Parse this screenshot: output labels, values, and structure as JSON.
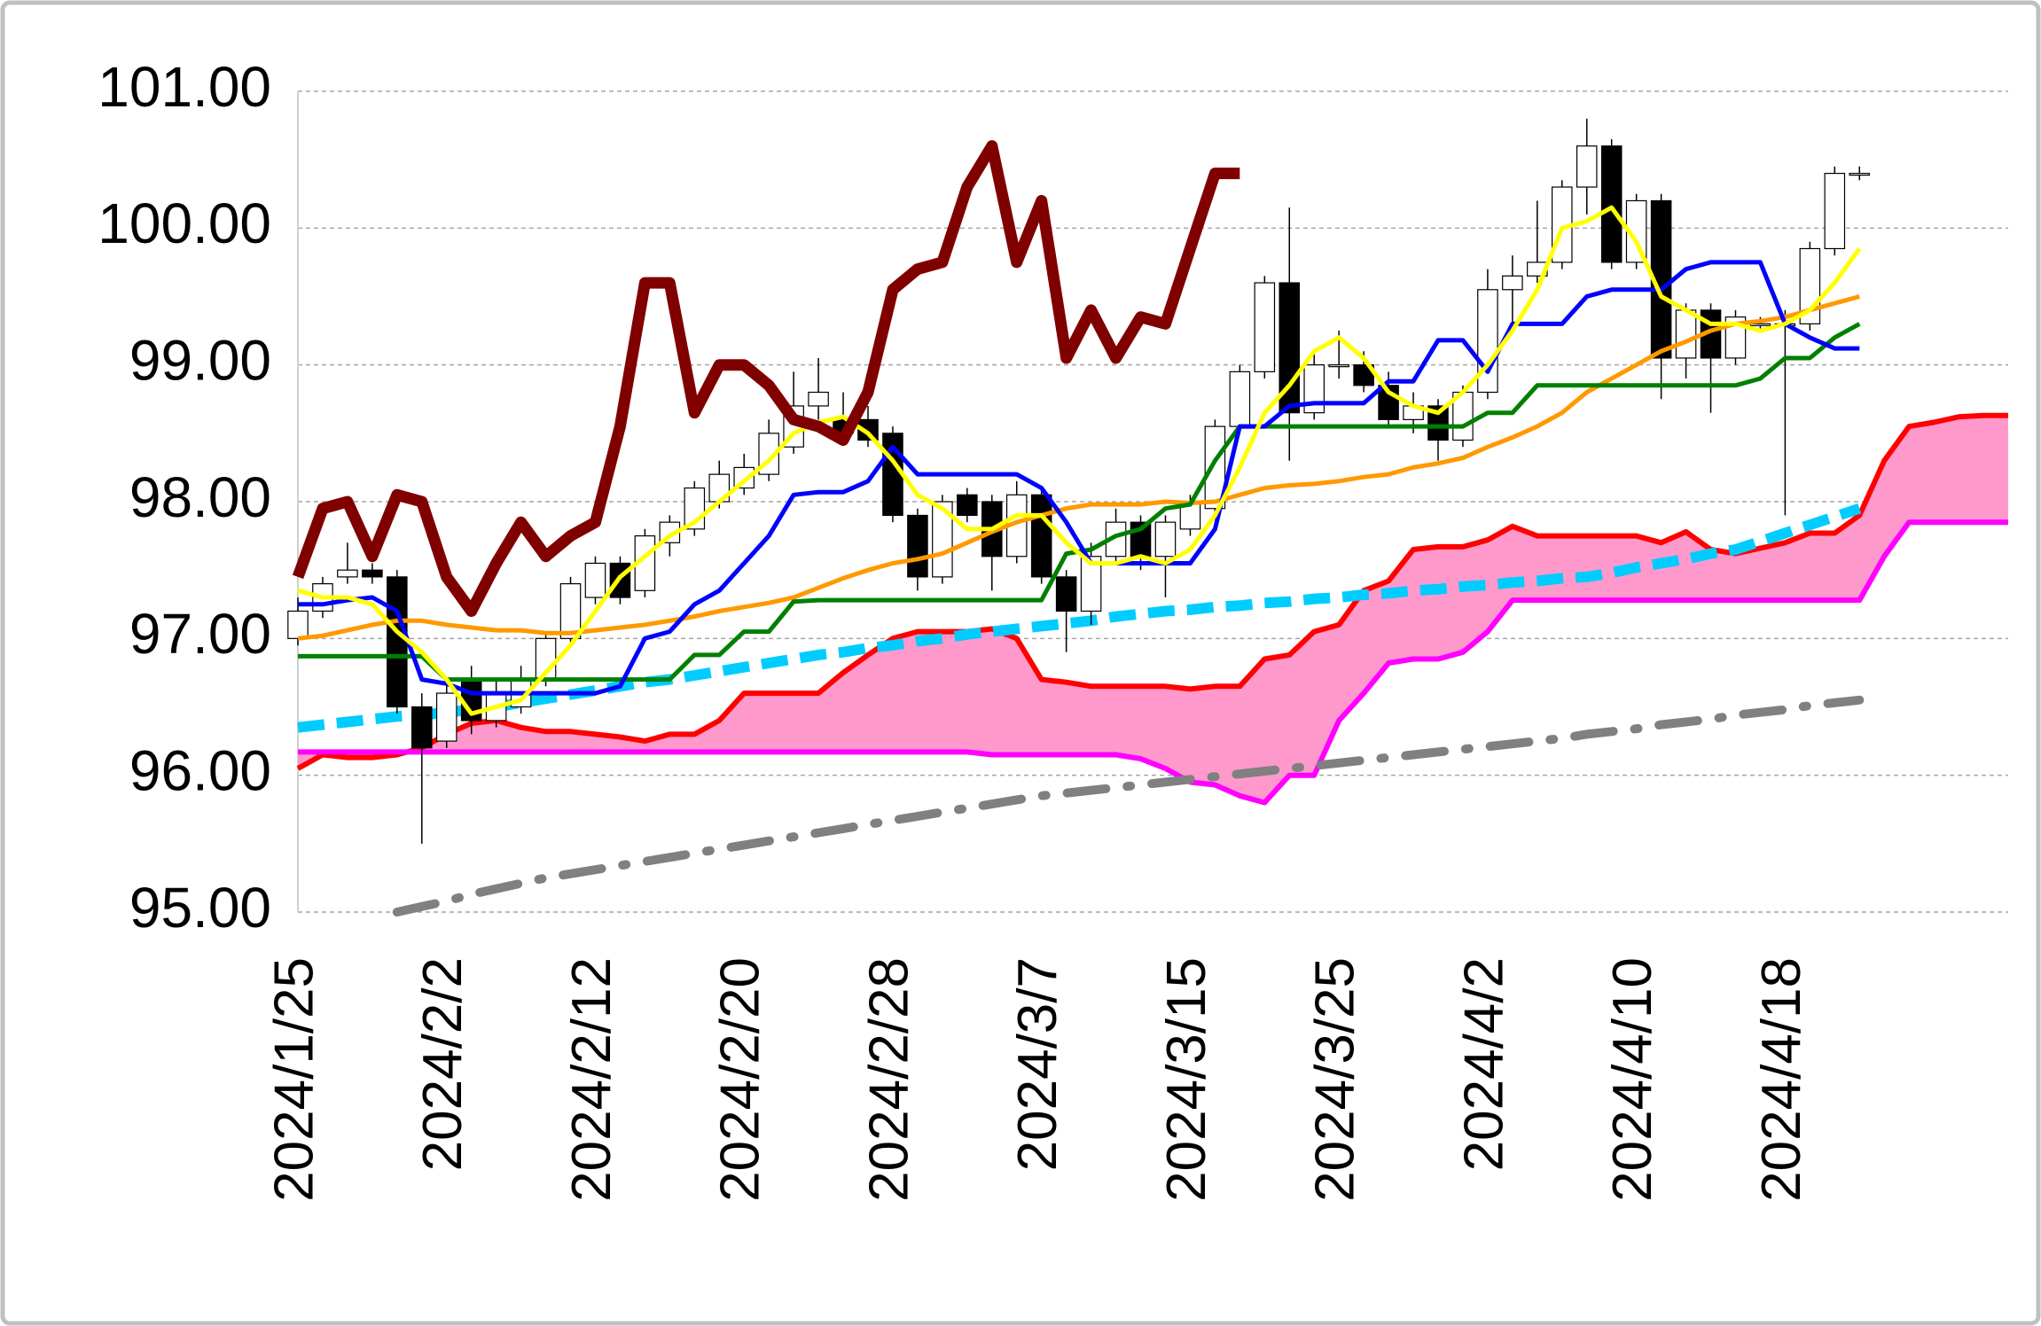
{
  "chart_data": {
    "type": "candlestick",
    "categories": [
      "2024/1/25",
      null,
      null,
      null,
      null,
      null,
      "2024/2/2",
      null,
      null,
      null,
      null,
      null,
      "2024/2/12",
      null,
      null,
      null,
      null,
      null,
      "2024/2/20",
      null,
      null,
      null,
      null,
      null,
      "2024/2/28",
      null,
      null,
      null,
      null,
      null,
      "2024/3/7",
      null,
      null,
      null,
      null,
      null,
      "2024/3/15",
      null,
      null,
      null,
      null,
      null,
      "2024/3/25",
      null,
      null,
      null,
      null,
      null,
      "2024/4/2",
      null,
      null,
      null,
      null,
      null,
      "2024/4/10",
      null,
      null,
      null,
      null,
      null,
      "2024/4/18",
      null,
      null,
      null,
      null,
      null,
      null,
      null,
      null,
      null
    ],
    "ohlc": {
      "up_color": "#ffffff",
      "down_color": "#000000",
      "edge_color": "#000000",
      "open": [
        97.0,
        97.2,
        97.45,
        97.5,
        97.45,
        96.5,
        96.25,
        96.7,
        96.4,
        96.5,
        96.7,
        97.0,
        97.3,
        97.55,
        97.35,
        97.7,
        97.8,
        98.0,
        98.1,
        98.2,
        98.4,
        98.7,
        98.6,
        98.6,
        98.5,
        97.9,
        97.45,
        98.05,
        98.0,
        97.6,
        98.05,
        97.45,
        97.2,
        97.6,
        97.85,
        97.6,
        97.8,
        97.95,
        98.55,
        98.95,
        99.6,
        98.65,
        99.0,
        99.0,
        98.85,
        98.6,
        98.7,
        98.45,
        98.8,
        99.55,
        99.65,
        99.75,
        100.3,
        100.6,
        99.75,
        100.2,
        99.05,
        99.4,
        99.05,
        99.3,
        99.3,
        99.3,
        99.85,
        100.4,
        null,
        null,
        null,
        null,
        null,
        null
      ],
      "high": [
        97.3,
        97.45,
        97.7,
        97.55,
        97.5,
        96.6,
        96.7,
        96.8,
        96.7,
        96.8,
        97.05,
        97.45,
        97.6,
        97.6,
        97.8,
        97.9,
        98.15,
        98.3,
        98.35,
        98.6,
        98.95,
        99.05,
        98.8,
        98.7,
        98.55,
        97.95,
        98.05,
        98.1,
        98.05,
        98.15,
        98.1,
        97.5,
        97.7,
        97.95,
        97.9,
        97.9,
        98.05,
        98.6,
        99.0,
        99.65,
        100.15,
        99.1,
        99.25,
        99.1,
        98.95,
        98.8,
        98.75,
        98.85,
        99.7,
        99.8,
        100.2,
        100.35,
        100.8,
        100.65,
        100.25,
        100.25,
        99.45,
        99.45,
        99.4,
        99.35,
        99.4,
        99.9,
        100.45,
        100.45,
        null,
        null,
        null,
        null,
        null,
        null
      ],
      "low": [
        96.95,
        97.15,
        97.4,
        97.4,
        96.45,
        95.5,
        96.2,
        96.3,
        96.35,
        96.45,
        96.65,
        96.95,
        97.25,
        97.25,
        97.3,
        97.6,
        97.75,
        97.95,
        98.05,
        98.15,
        98.35,
        98.6,
        98.5,
        98.4,
        97.85,
        97.35,
        97.4,
        97.85,
        97.35,
        97.55,
        97.4,
        96.9,
        97.1,
        97.55,
        97.5,
        97.3,
        97.75,
        97.9,
        98.5,
        98.9,
        98.3,
        98.6,
        98.9,
        98.8,
        98.55,
        98.5,
        98.3,
        98.4,
        98.75,
        99.3,
        99.6,
        99.7,
        100.1,
        99.7,
        99.7,
        98.75,
        98.9,
        98.65,
        99.0,
        99.25,
        97.9,
        99.25,
        99.8,
        100.35,
        null,
        null,
        null,
        null,
        null,
        null
      ],
      "close": [
        97.2,
        97.4,
        97.5,
        97.45,
        96.5,
        96.2,
        96.6,
        96.4,
        96.6,
        96.7,
        97.0,
        97.4,
        97.55,
        97.3,
        97.75,
        97.85,
        98.1,
        98.2,
        98.25,
        98.5,
        98.7,
        98.8,
        98.5,
        98.45,
        97.9,
        97.45,
        98.0,
        97.9,
        97.6,
        98.05,
        97.45,
        97.2,
        97.6,
        97.85,
        97.6,
        97.85,
        98.0,
        98.55,
        98.95,
        99.6,
        98.65,
        99.0,
        99.0,
        98.85,
        98.6,
        98.7,
        98.45,
        98.8,
        99.55,
        99.65,
        99.75,
        100.3,
        100.6,
        99.75,
        100.2,
        99.05,
        99.4,
        99.05,
        99.35,
        99.3,
        99.3,
        99.85,
        100.4,
        100.4,
        null,
        null,
        null,
        null,
        null,
        null
      ]
    },
    "cloud": {
      "between": [
        0,
        1
      ],
      "color": "#ff99cc"
    },
    "series": [
      {
        "color": "#ff0000",
        "width": 6,
        "style": "solid",
        "values": [
          96.05,
          96.15,
          96.13,
          96.13,
          96.15,
          96.2,
          96.3,
          96.38,
          96.4,
          96.35,
          96.32,
          96.32,
          96.3,
          96.28,
          96.25,
          96.3,
          96.3,
          96.4,
          96.6,
          96.6,
          96.6,
          96.6,
          96.75,
          96.88,
          97.0,
          97.05,
          97.05,
          97.05,
          97.07,
          97.0,
          96.7,
          96.68,
          96.65,
          96.65,
          96.65,
          96.65,
          96.63,
          96.65,
          96.65,
          96.85,
          96.88,
          97.05,
          97.1,
          97.35,
          97.42,
          97.65,
          97.67,
          97.67,
          97.72,
          97.82,
          97.75,
          97.75,
          97.75,
          97.75,
          97.75,
          97.7,
          97.78,
          97.65,
          97.62,
          97.66,
          97.7,
          97.77,
          97.77,
          97.9,
          98.3,
          98.55,
          98.58,
          98.62,
          98.63,
          98.63
        ]
      },
      {
        "color": "#ff00ff",
        "width": 6,
        "style": "solid",
        "values": [
          96.17,
          96.17,
          96.17,
          96.17,
          96.17,
          96.17,
          96.17,
          96.17,
          96.17,
          96.17,
          96.17,
          96.17,
          96.17,
          96.17,
          96.17,
          96.17,
          96.17,
          96.17,
          96.17,
          96.17,
          96.17,
          96.17,
          96.17,
          96.17,
          96.17,
          96.17,
          96.17,
          96.17,
          96.15,
          96.15,
          96.15,
          96.15,
          96.15,
          96.15,
          96.12,
          96.05,
          95.95,
          95.93,
          95.85,
          95.8,
          96.0,
          96.0,
          96.4,
          96.6,
          96.82,
          96.85,
          96.85,
          96.9,
          97.05,
          97.28,
          97.28,
          97.28,
          97.28,
          97.28,
          97.28,
          97.28,
          97.28,
          97.28,
          97.28,
          97.28,
          97.28,
          97.28,
          97.28,
          97.28,
          97.6,
          97.85,
          97.85,
          97.85,
          97.85,
          97.85
        ]
      },
      {
        "color": "#808080",
        "width": 10,
        "style": "dash-dot",
        "values": [
          null,
          null,
          null,
          null,
          95.0,
          95.04,
          95.08,
          95.13,
          95.17,
          95.21,
          95.25,
          95.28,
          95.31,
          95.34,
          95.37,
          95.4,
          95.43,
          95.46,
          95.49,
          95.52,
          95.55,
          95.58,
          95.61,
          95.64,
          95.67,
          95.7,
          95.73,
          95.76,
          95.79,
          95.82,
          95.85,
          95.87,
          95.89,
          95.91,
          95.93,
          95.95,
          95.97,
          95.99,
          96.01,
          96.03,
          96.05,
          96.07,
          96.09,
          96.11,
          96.13,
          96.15,
          96.17,
          96.19,
          96.21,
          96.23,
          96.25,
          96.27,
          96.3,
          96.32,
          96.34,
          96.37,
          96.39,
          96.41,
          96.44,
          96.46,
          96.48,
          96.51,
          96.53,
          96.55,
          null,
          null,
          null,
          null,
          null,
          null
        ]
      },
      {
        "color": "#00ccff",
        "width": 12,
        "style": "dashed",
        "values": [
          96.35,
          96.37,
          96.39,
          96.41,
          96.43,
          96.44,
          96.46,
          96.48,
          96.5,
          96.53,
          96.56,
          96.59,
          96.62,
          96.65,
          96.68,
          96.7,
          96.73,
          96.76,
          96.79,
          96.82,
          96.85,
          96.88,
          96.9,
          96.93,
          96.95,
          96.98,
          97.0,
          97.03,
          97.05,
          97.07,
          97.09,
          97.11,
          97.13,
          97.16,
          97.18,
          97.2,
          97.21,
          97.23,
          97.24,
          97.26,
          97.27,
          97.29,
          97.3,
          97.32,
          97.33,
          97.35,
          97.36,
          97.38,
          97.39,
          97.41,
          97.42,
          97.44,
          97.45,
          97.48,
          97.52,
          97.55,
          97.58,
          97.62,
          97.65,
          97.71,
          97.77,
          97.83,
          97.89,
          97.95,
          null,
          null,
          null,
          null,
          null,
          null
        ]
      },
      {
        "color": "#ff9900",
        "width": 5,
        "style": "solid",
        "values": [
          97.0,
          97.02,
          97.06,
          97.1,
          97.13,
          97.13,
          97.1,
          97.08,
          97.06,
          97.06,
          97.04,
          97.04,
          97.06,
          97.08,
          97.1,
          97.13,
          97.16,
          97.2,
          97.23,
          97.26,
          97.3,
          97.37,
          97.44,
          97.5,
          97.55,
          97.58,
          97.62,
          97.7,
          97.78,
          97.85,
          97.9,
          97.95,
          97.98,
          97.98,
          97.98,
          98.0,
          97.99,
          98.0,
          98.05,
          98.1,
          98.12,
          98.13,
          98.15,
          98.18,
          98.2,
          98.25,
          98.28,
          98.32,
          98.4,
          98.47,
          98.55,
          98.65,
          98.8,
          98.9,
          99.0,
          99.1,
          99.17,
          99.25,
          99.3,
          99.32,
          99.35,
          99.4,
          99.45,
          99.5,
          null,
          null,
          null,
          null,
          null,
          null
        ]
      },
      {
        "color": "#008000",
        "width": 5,
        "style": "solid",
        "values": [
          96.87,
          96.87,
          96.87,
          96.87,
          96.87,
          96.87,
          96.7,
          96.7,
          96.7,
          96.7,
          96.7,
          96.7,
          96.7,
          96.7,
          96.7,
          96.7,
          96.88,
          96.88,
          97.05,
          97.05,
          97.27,
          97.28,
          97.28,
          97.28,
          97.28,
          97.28,
          97.28,
          97.28,
          97.28,
          97.28,
          97.28,
          97.62,
          97.65,
          97.75,
          97.8,
          97.95,
          97.98,
          98.3,
          98.55,
          98.55,
          98.55,
          98.55,
          98.55,
          98.55,
          98.55,
          98.55,
          98.55,
          98.55,
          98.65,
          98.65,
          98.85,
          98.85,
          98.85,
          98.85,
          98.85,
          98.85,
          98.85,
          98.85,
          98.85,
          98.9,
          99.05,
          99.05,
          99.2,
          99.3,
          null,
          null,
          null,
          null,
          null,
          null
        ]
      },
      {
        "color": "#0000ff",
        "width": 5,
        "style": "solid",
        "values": [
          97.25,
          97.25,
          97.28,
          97.3,
          97.2,
          96.7,
          96.67,
          96.6,
          96.6,
          96.6,
          96.6,
          96.6,
          96.6,
          96.65,
          97.0,
          97.05,
          97.25,
          97.35,
          97.55,
          97.75,
          98.05,
          98.07,
          98.07,
          98.15,
          98.4,
          98.2,
          98.2,
          98.2,
          98.2,
          98.2,
          98.1,
          97.85,
          97.55,
          97.55,
          97.55,
          97.55,
          97.55,
          97.8,
          98.55,
          98.55,
          98.7,
          98.72,
          98.72,
          98.72,
          98.88,
          98.88,
          99.18,
          99.18,
          98.95,
          99.3,
          99.3,
          99.3,
          99.5,
          99.55,
          99.55,
          99.55,
          99.7,
          99.75,
          99.75,
          99.75,
          99.3,
          99.2,
          99.12,
          99.12,
          null,
          null,
          null,
          null,
          null,
          null
        ]
      },
      {
        "color": "#ffff00",
        "width": 5,
        "style": "solid",
        "values": [
          97.35,
          97.3,
          97.3,
          97.25,
          97.05,
          96.9,
          96.7,
          96.45,
          96.5,
          96.55,
          96.75,
          96.95,
          97.2,
          97.45,
          97.6,
          97.75,
          97.85,
          98.0,
          98.15,
          98.3,
          98.5,
          98.58,
          98.62,
          98.5,
          98.3,
          98.05,
          97.95,
          97.8,
          97.8,
          97.9,
          97.9,
          97.7,
          97.55,
          97.55,
          97.6,
          97.55,
          97.65,
          97.9,
          98.25,
          98.65,
          98.85,
          99.1,
          99.2,
          99.05,
          98.8,
          98.7,
          98.65,
          98.8,
          99.0,
          99.25,
          99.55,
          100.0,
          100.05,
          100.15,
          99.9,
          99.5,
          99.4,
          99.3,
          99.3,
          99.25,
          99.3,
          99.4,
          99.6,
          99.85,
          null,
          null,
          null,
          null,
          null,
          null
        ]
      },
      {
        "color": "#800000",
        "width": 13,
        "style": "solid",
        "values": [
          97.45,
          97.95,
          98.0,
          97.6,
          98.05,
          98.0,
          97.45,
          97.2,
          97.55,
          97.85,
          97.6,
          97.75,
          97.85,
          98.55,
          99.6,
          99.6,
          98.65,
          99.0,
          99.0,
          98.85,
          98.6,
          98.55,
          98.45,
          98.8,
          99.55,
          99.7,
          99.75,
          100.3,
          100.6,
          99.75,
          100.2,
          99.05,
          99.4,
          99.05,
          99.35,
          99.3,
          99.85,
          100.4,
          100.4,
          null,
          null,
          null,
          null,
          null,
          null,
          null,
          null,
          null,
          null,
          null,
          null,
          null,
          null,
          null,
          null,
          null,
          null,
          null,
          null,
          null,
          null,
          null,
          null,
          null,
          null,
          null,
          null,
          null,
          null,
          null
        ]
      }
    ],
    "ylim": [
      95,
      101
    ],
    "yticks": [
      {
        "value": 95,
        "label": "95.00"
      },
      {
        "value": 96,
        "label": "96.00"
      },
      {
        "value": 97,
        "label": "97.00"
      },
      {
        "value": 98,
        "label": "98.00"
      },
      {
        "value": 99,
        "label": "99.00"
      },
      {
        "value": 100,
        "label": "100.00"
      },
      {
        "value": 101,
        "label": "101.00"
      }
    ],
    "grid": true
  }
}
